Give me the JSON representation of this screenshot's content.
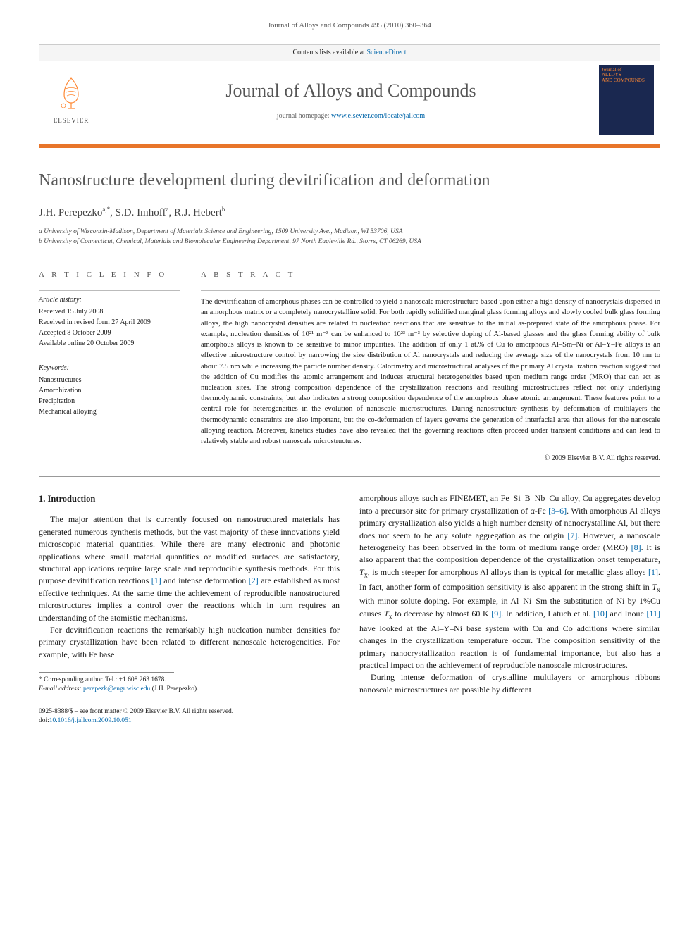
{
  "running_header": "Journal of Alloys and Compounds 495 (2010) 360–364",
  "masthead": {
    "contents_line_pre": "Contents lists available at ",
    "contents_link": "ScienceDirect",
    "journal_title": "Journal of Alloys and Compounds",
    "homepage_pre": "journal homepage: ",
    "homepage_url": "www.elsevier.com/locate/jallcom",
    "elsevier_label": "ELSEVIER",
    "cover_text1": "Journal of",
    "cover_text2": "ALLOYS",
    "cover_text3": "AND COMPOUNDS"
  },
  "article": {
    "title": "Nanostructure development during devitrification and deformation",
    "authors_html": "J.H. Perepezko<sup>a,*</sup>, S.D. Imhoff<sup>a</sup>, R.J. Hebert<sup>b</sup>",
    "affiliations": [
      "a University of Wisconsin-Madison, Department of Materials Science and Engineering, 1509 University Ave., Madison, WI 53706, USA",
      "b University of Connecticut, Chemical, Materials and Biomolecular Engineering Department, 97 North Eagleville Rd., Storrs, CT 06269, USA"
    ]
  },
  "info": {
    "heading": "a r t i c l e   i n f o",
    "history_label": "Article history:",
    "history": [
      "Received 15 July 2008",
      "Received in revised form 27 April 2009",
      "Accepted 8 October 2009",
      "Available online 20 October 2009"
    ],
    "keywords_label": "Keywords:",
    "keywords": [
      "Nanostructures",
      "Amorphization",
      "Precipitation",
      "Mechanical alloying"
    ]
  },
  "abstract": {
    "heading": "a b s t r a c t",
    "text": "The devitrification of amorphous phases can be controlled to yield a nanoscale microstructure based upon either a high density of nanocrystals dispersed in an amorphous matrix or a completely nanocrystalline solid. For both rapidly solidified marginal glass forming alloys and slowly cooled bulk glass forming alloys, the high nanocrystal densities are related to nucleation reactions that are sensitive to the initial as-prepared state of the amorphous phase. For example, nucleation densities of 10²¹ m⁻³ can be enhanced to 10²³ m⁻³ by selective doping of Al-based glasses and the glass forming ability of bulk amorphous alloys is known to be sensitive to minor impurities. The addition of only 1 at.% of Cu to amorphous Al–Sm–Ni or Al–Y–Fe alloys is an effective microstructure control by narrowing the size distribution of Al nanocrystals and reducing the average size of the nanocrystals from 10 nm to about 7.5 nm while increasing the particle number density. Calorimetry and microstructural analyses of the primary Al crystallization reaction suggest that the addition of Cu modifies the atomic arrangement and induces structural heterogeneities based upon medium range order (MRO) that can act as nucleation sites. The strong composition dependence of the crystallization reactions and resulting microstructures reflect not only underlying thermodynamic constraints, but also indicates a strong composition dependence of the amorphous phase atomic arrangement. These features point to a central role for heterogeneities in the evolution of nanoscale microstructures. During nanostructure synthesis by deformation of multilayers the thermodynamic constraints are also important, but the co-deformation of layers governs the generation of interfacial area that allows for the nanoscale alloying reaction. Moreover, kinetics studies have also revealed that the governing reactions often proceed under transient conditions and can lead to relatively stable and robust nanoscale microstructures.",
    "copyright": "© 2009 Elsevier B.V. All rights reserved."
  },
  "body": {
    "section1_heading": "1. Introduction",
    "p1": "The major attention that is currently focused on nanostructured materials has generated numerous synthesis methods, but the vast majority of these innovations yield microscopic material quantities. While there are many electronic and photonic applications where small material quantities or modified surfaces are satisfactory, structural applications require large scale and reproducible synthesis methods. For this purpose devitrification reactions [1] and intense deformation [2] are established as most effective techniques. At the same time the achievement of reproducible nanostructured microstructures implies a control over the reactions which in turn requires an understanding of the atomistic mechanisms.",
    "p2": "For devitrification reactions the remarkably high nucleation number densities for primary crystallization have been related to different nanoscale heterogeneities. For example, with Fe base",
    "p3": "amorphous alloys such as FINEMET, an Fe–Si–B–Nb–Cu alloy, Cu aggregates develop into a precursor site for primary crystallization of α-Fe [3–6]. With amorphous Al alloys primary crystallization also yields a high number density of nanocrystalline Al, but there does not seem to be any solute aggregation as the origin [7]. However, a nanoscale heterogeneity has been observed in the form of medium range order (MRO) [8]. It is also apparent that the composition dependence of the crystallization onset temperature, Tx, is much steeper for amorphous Al alloys than is typical for metallic glass alloys [1]. In fact, another form of composition sensitivity is also apparent in the strong shift in Tx with minor solute doping. For example, in Al–Ni–Sm the substitution of Ni by 1%Cu causes Tx to decrease by almost 60 K [9]. In addition, Latuch et al. [10] and Inoue [11] have looked at the Al–Y–Ni base system with Cu and Co additions where similar changes in the crystallization temperature occur. The composition sensitivity of the primary nanocrystallization reaction is of fundamental importance, but also has a practical impact on the achievement of reproducible nanoscale microstructures.",
    "p4": "During intense deformation of crystalline multilayers or amorphous ribbons nanoscale microstructures are possible by different"
  },
  "footnotes": {
    "corr": "* Corresponding author. Tel.: +1 608 263 1678.",
    "email_label": "E-mail address: ",
    "email": "perepezk@engr.wisc.edu",
    "email_suffix": " (J.H. Perepezko)."
  },
  "footer": {
    "line1": "0925-8388/$ – see front matter © 2009 Elsevier B.V. All rights reserved.",
    "doi_pre": "doi:",
    "doi": "10.1016/j.jallcom.2009.10.051"
  },
  "colors": {
    "orange": "#e8752a",
    "link": "#0066aa",
    "navy": "#1a2850"
  }
}
